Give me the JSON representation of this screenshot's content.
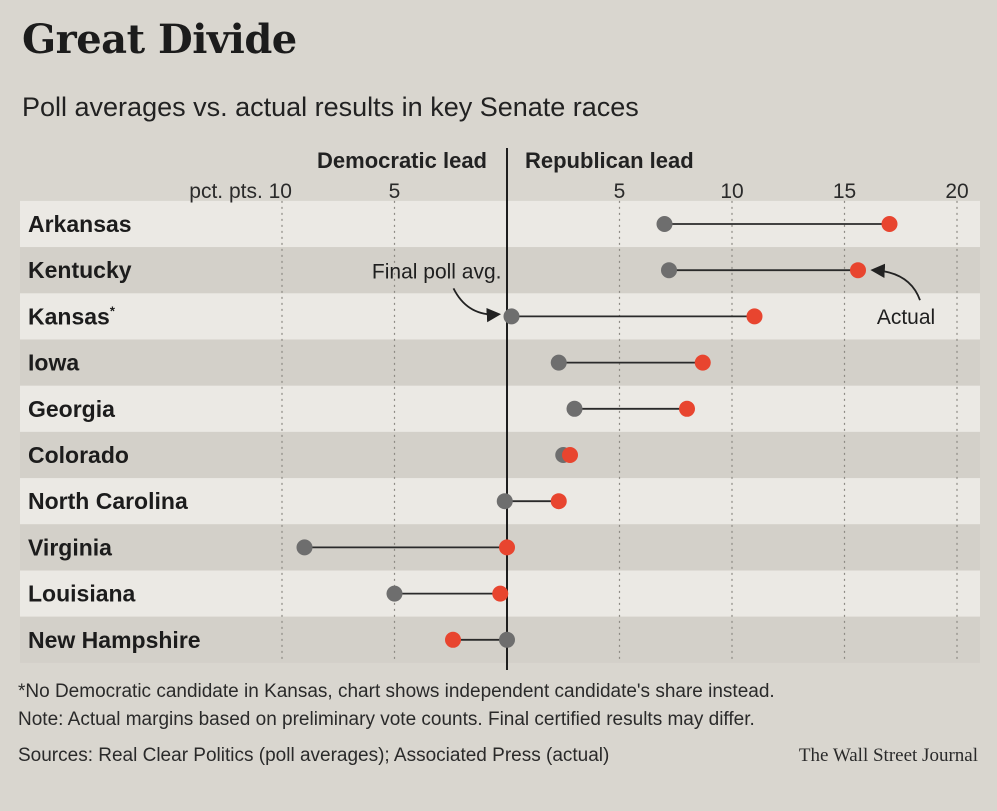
{
  "title": "Great Divide",
  "subtitle": "Poll averages vs. actual results in key Senate races",
  "chart_data": {
    "type": "dot-range",
    "title": "Great Divide",
    "subtitle": "Poll averages vs. actual results in key Senate races",
    "header_left": "Democratic lead",
    "header_right": "Republican lead",
    "axis_unit_label": "pct. pts.",
    "xlim": [
      -10,
      20
    ],
    "ticks": [
      {
        "value": -10,
        "label": "10"
      },
      {
        "value": -5,
        "label": "5"
      },
      {
        "value": 5,
        "label": "5"
      },
      {
        "value": 10,
        "label": "10"
      },
      {
        "value": 15,
        "label": "15"
      },
      {
        "value": 20,
        "label": "20"
      }
    ],
    "series": [
      {
        "name": "Final poll avg.",
        "color": "#6e6e6e"
      },
      {
        "name": "Actual",
        "color": "#e8452f"
      }
    ],
    "races": [
      {
        "state": "Arkansas",
        "poll": 7.0,
        "actual": 17.0
      },
      {
        "state": "Kentucky",
        "poll": 7.2,
        "actual": 15.6
      },
      {
        "state": "Kansas",
        "marker": "*",
        "poll": 0.2,
        "actual": 11.0
      },
      {
        "state": "Iowa",
        "poll": 2.3,
        "actual": 8.7
      },
      {
        "state": "Georgia",
        "poll": 3.0,
        "actual": 8.0
      },
      {
        "state": "Colorado",
        "poll": 2.5,
        "actual": 2.8
      },
      {
        "state": "North Carolina",
        "poll": -0.1,
        "actual": 2.3
      },
      {
        "state": "Virginia",
        "poll": -9.0,
        "actual": 0.0
      },
      {
        "state": "Louisiana",
        "poll": -5.0,
        "actual": -0.3
      },
      {
        "state": "New Hampshire",
        "poll": 0.0,
        "actual": -2.4
      }
    ],
    "annotations": [
      {
        "text": "Final poll avg.",
        "target_state": "Kansas",
        "target": "poll"
      },
      {
        "text": "Actual",
        "target_state": "Kentucky",
        "target": "actual"
      }
    ]
  },
  "notes": {
    "kansas_note": "*No Democratic candidate in Kansas, chart shows independent candidate's share instead.",
    "general_note": "Note: Actual margins based on preliminary vote counts. Final certified results may differ.",
    "sources": "Sources: Real Clear Politics (poll averages); Associated Press (actual)",
    "credit": "The Wall Street Journal"
  }
}
